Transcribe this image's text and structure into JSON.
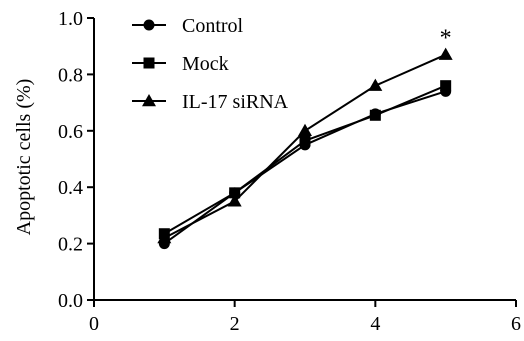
{
  "chart_data": {
    "type": "line",
    "ylabel": "Apoptotic cells (%)",
    "xlim": [
      0,
      6
    ],
    "ylim": [
      0,
      1.0
    ],
    "x_ticks": [
      0,
      2,
      4,
      6
    ],
    "y_ticks": [
      0.0,
      0.2,
      0.4,
      0.6,
      0.8,
      1.0
    ],
    "y_tick_labels": [
      "0.0",
      "0.2",
      "0.4",
      "0.6",
      "0.8",
      "1.0"
    ],
    "grid": false,
    "legend_position": "top-left",
    "series": [
      {
        "name": "Control",
        "marker": "circle",
        "x": [
          1,
          2,
          3,
          4,
          5
        ],
        "y": [
          0.2,
          0.38,
          0.55,
          0.66,
          0.74
        ]
      },
      {
        "name": "Mock",
        "marker": "square",
        "x": [
          1,
          2,
          3,
          4,
          5
        ],
        "y": [
          0.235,
          0.38,
          0.565,
          0.655,
          0.76
        ]
      },
      {
        "name": "IL-17 siRNA",
        "marker": "triangle",
        "x": [
          1,
          2,
          3,
          4,
          5
        ],
        "y": [
          0.22,
          0.35,
          0.6,
          0.76,
          0.87
        ]
      }
    ],
    "annotations": [
      {
        "text": "*",
        "x": 5,
        "y": 0.87
      }
    ]
  }
}
